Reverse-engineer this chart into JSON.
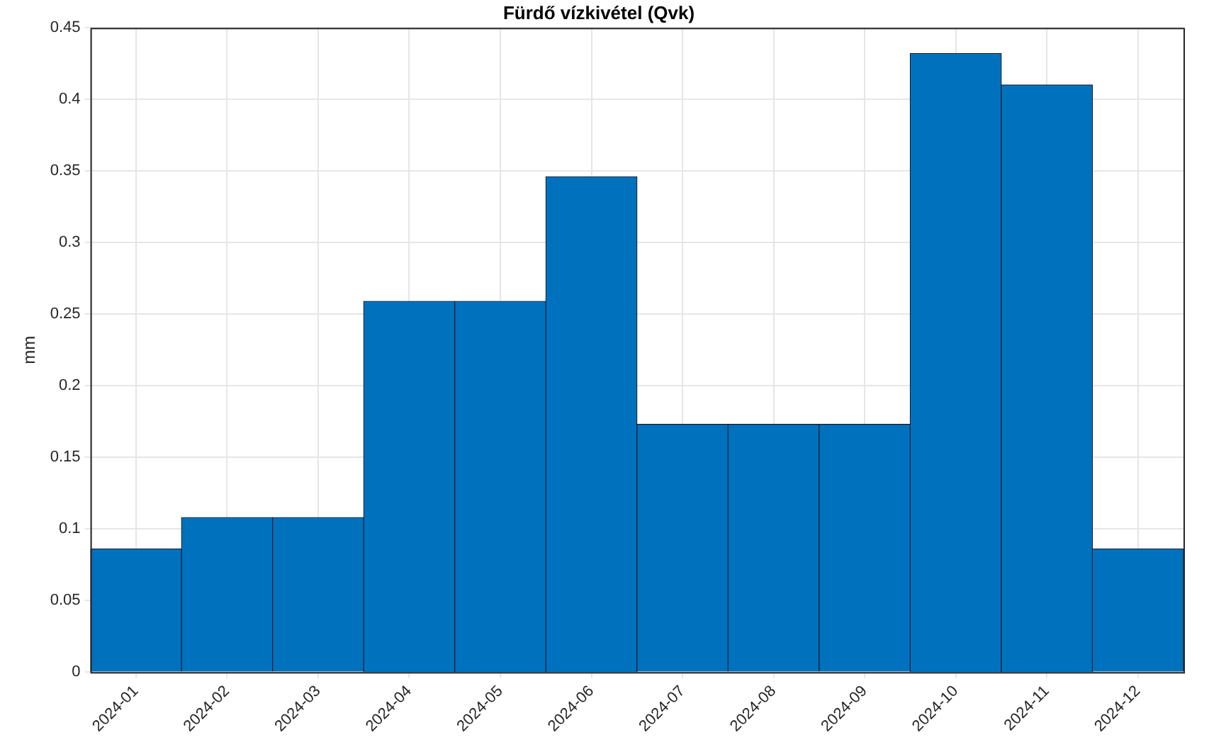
{
  "chart_data": {
    "type": "bar",
    "title": "Fürdő vízkivétel (Qvk)",
    "ylabel": "mm",
    "categories": [
      "2024-01",
      "2024-02",
      "2024-03",
      "2024-04",
      "2024-05",
      "2024-06",
      "2024-07",
      "2024-08",
      "2024-09",
      "2024-10",
      "2024-11",
      "2024-12"
    ],
    "values": [
      0.086,
      0.108,
      0.108,
      0.259,
      0.259,
      0.346,
      0.173,
      0.173,
      0.173,
      0.432,
      0.41,
      0.086
    ],
    "color": "#0072bd",
    "ylim": [
      0,
      0.45
    ],
    "yticks": [
      0,
      0.05,
      0.1,
      0.15,
      0.2,
      0.25,
      0.3,
      0.35,
      0.4,
      0.45
    ],
    "grid": true,
    "legend": false
  }
}
